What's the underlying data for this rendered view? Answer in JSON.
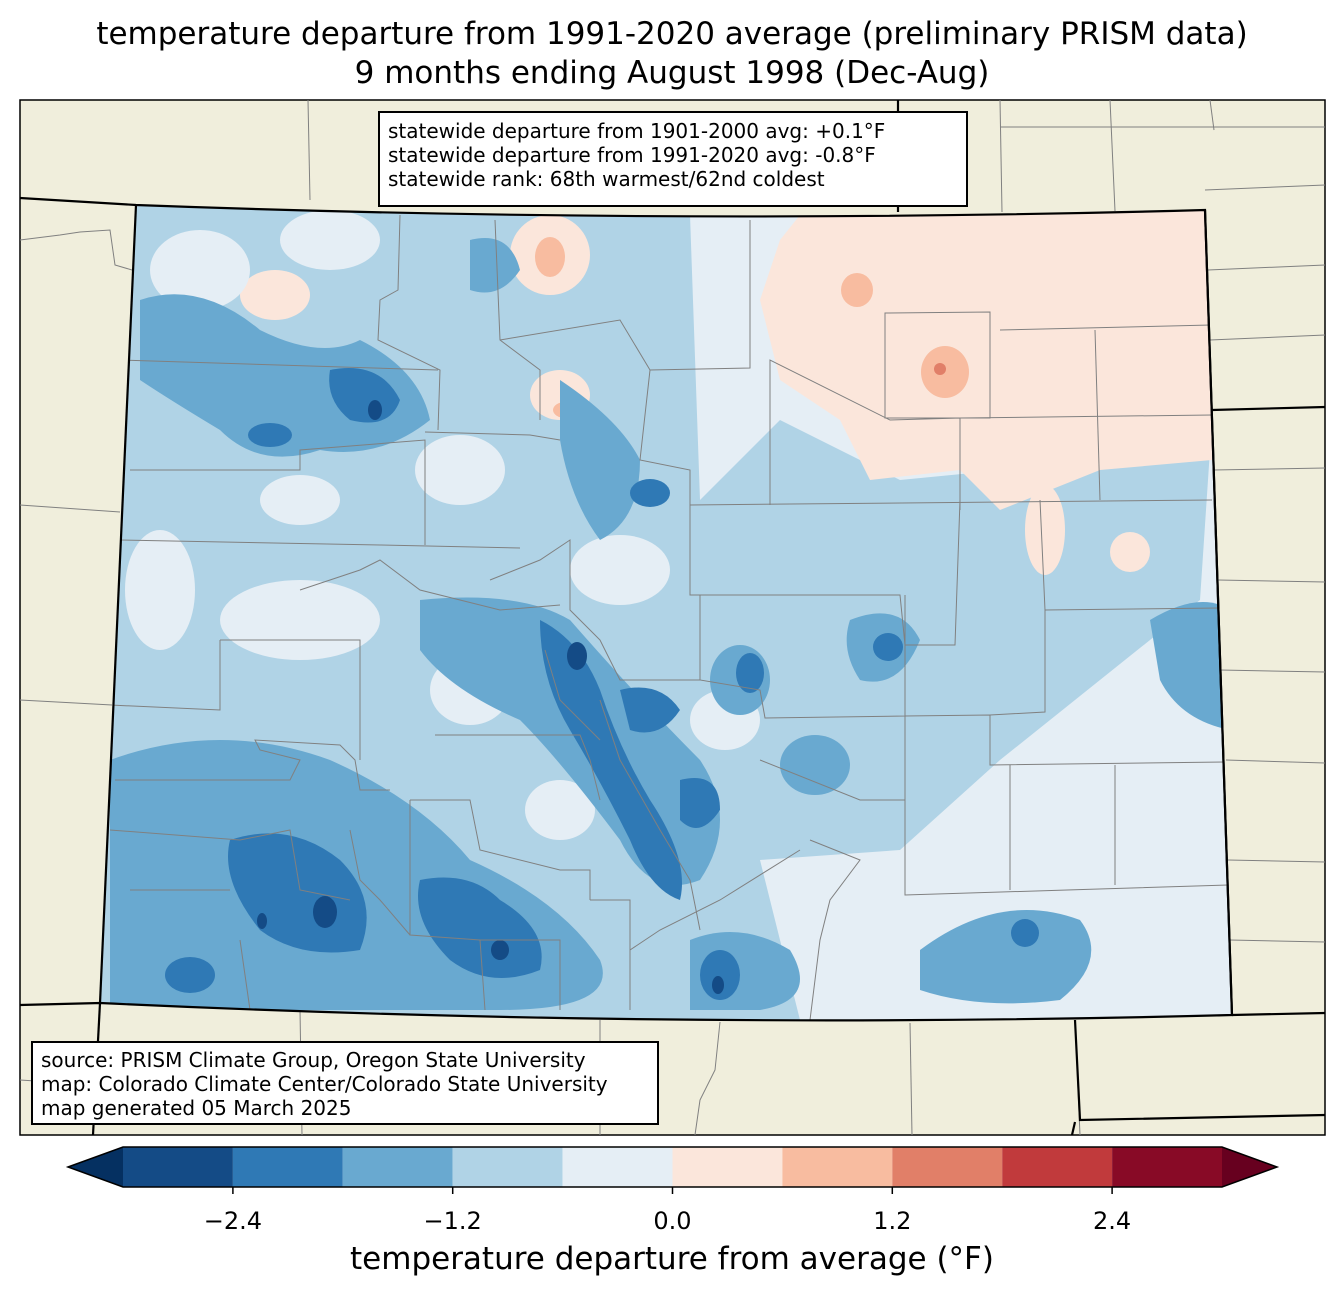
{
  "title": {
    "line1": "temperature departure from 1991-2020 average (preliminary PRISM data)",
    "line2": "9 months ending August 1998 (Dec-Aug)"
  },
  "stats": {
    "line1": "statewide departure from 1901-2000 avg: +0.1°F",
    "line2": "statewide departure from 1991-2020 avg: -0.8°F",
    "line3": "statewide rank: 68th warmest/62nd coldest"
  },
  "source": {
    "line1": "source: PRISM Climate Group, Oregon State University",
    "line2": "map: Colorado Climate Center/Colorado State University",
    "line3": "map generated 05 March 2025"
  },
  "colorbar": {
    "label": "temperature departure from average (°F)",
    "ticks": [
      "−2.4",
      "−1.2",
      "0.0",
      "1.2",
      "2.4"
    ],
    "tick_values": [
      -2.4,
      -1.2,
      0.0,
      1.2,
      2.4
    ],
    "range": [
      -3.0,
      3.0
    ],
    "bin_width": 0.6,
    "colors": [
      "#144b86",
      "#2f79b5",
      "#69a9d0",
      "#b0d3e6",
      "#e5eef5",
      "#fbe6db",
      "#f8bca0",
      "#e17f68",
      "#c13a3c",
      "#880a26"
    ],
    "under_color": "#053061",
    "over_color": "#67001f"
  },
  "map_colors": {
    "land": "#f0eedc",
    "county_lines": "#808080",
    "state_lines": "#000000"
  }
}
